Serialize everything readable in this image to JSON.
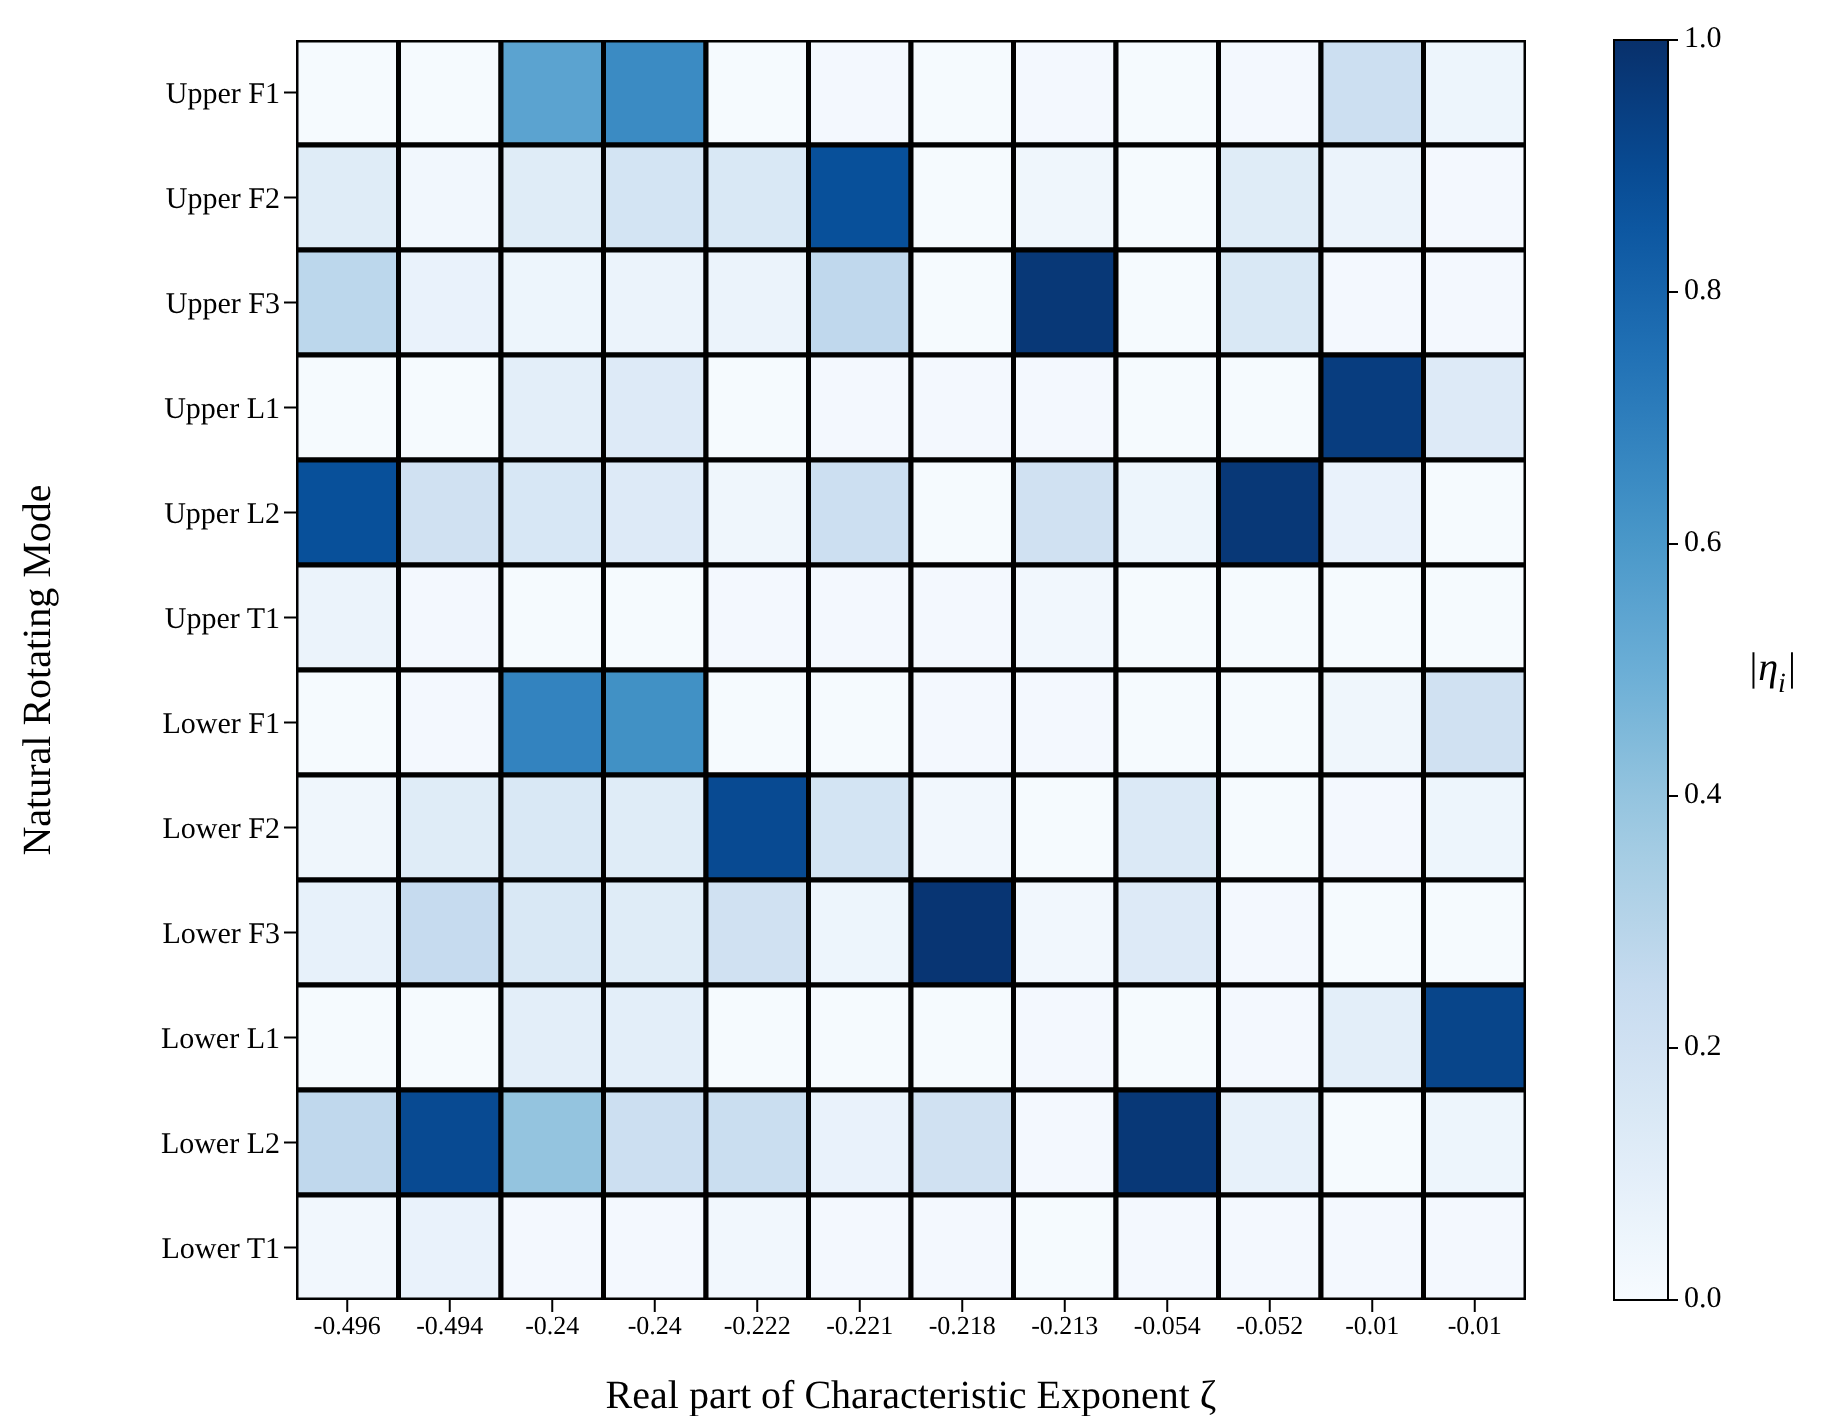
{
  "chart_data": {
    "type": "heatmap",
    "xlabel": "Real part of Characteristic Exponent ζ",
    "ylabel": "Natural Rotating Mode",
    "clabel": "|η$_{i}$|",
    "categories": [
      "-0.496",
      "-0.494",
      "-0.24",
      "-0.24",
      "-0.222",
      "-0.221",
      "-0.218",
      "-0.213",
      "-0.054",
      "-0.052",
      "-0.01",
      "-0.01"
    ],
    "y_categories": [
      "Upper F1",
      "Upper F2",
      "Upper F3",
      "Upper L1",
      "Upper L2",
      "Upper T1",
      "Lower F1",
      "Lower F2",
      "Lower F3",
      "Lower L1",
      "Lower L2",
      "Lower T1"
    ],
    "cells": [
      [
        0.01,
        0.01,
        0.55,
        0.65,
        0.01,
        0.02,
        0.01,
        0.02,
        0.01,
        0.02,
        0.22,
        0.05
      ],
      [
        0.12,
        0.03,
        0.12,
        0.18,
        0.15,
        0.88,
        0.01,
        0.04,
        0.01,
        0.12,
        0.06,
        0.02
      ],
      [
        0.28,
        0.07,
        0.05,
        0.06,
        0.06,
        0.27,
        0.01,
        0.97,
        0.01,
        0.15,
        0.02,
        0.02
      ],
      [
        0.01,
        0.01,
        0.1,
        0.13,
        0.01,
        0.02,
        0.02,
        0.02,
        0.01,
        0.01,
        0.95,
        0.13
      ],
      [
        0.88,
        0.2,
        0.16,
        0.13,
        0.04,
        0.22,
        0.01,
        0.2,
        0.05,
        0.97,
        0.07,
        0.01
      ],
      [
        0.06,
        0.02,
        0.01,
        0.01,
        0.02,
        0.02,
        0.02,
        0.03,
        0.01,
        0.01,
        0.01,
        0.01
      ],
      [
        0.01,
        0.02,
        0.68,
        0.63,
        0.01,
        0.01,
        0.02,
        0.02,
        0.01,
        0.01,
        0.04,
        0.2
      ],
      [
        0.04,
        0.12,
        0.15,
        0.12,
        0.9,
        0.18,
        0.03,
        0.01,
        0.14,
        0.01,
        0.02,
        0.05
      ],
      [
        0.08,
        0.25,
        0.15,
        0.12,
        0.2,
        0.05,
        0.98,
        0.03,
        0.13,
        0.02,
        0.01,
        0.01
      ],
      [
        0.01,
        0.01,
        0.1,
        0.1,
        0.01,
        0.01,
        0.01,
        0.02,
        0.01,
        0.02,
        0.1,
        0.92
      ],
      [
        0.27,
        0.9,
        0.4,
        0.22,
        0.23,
        0.07,
        0.2,
        0.02,
        0.97,
        0.08,
        0.01,
        0.05
      ],
      [
        0.03,
        0.07,
        0.02,
        0.02,
        0.03,
        0.02,
        0.02,
        0.01,
        0.02,
        0.02,
        0.02,
        0.02
      ]
    ],
    "clim": [
      0,
      1
    ],
    "cticks": [
      {
        "value": 0,
        "label": "0.0"
      },
      {
        "value": 0.2,
        "label": "0.2"
      },
      {
        "value": 0.4,
        "label": "0.4"
      },
      {
        "value": 0.6,
        "label": "0.6"
      },
      {
        "value": 0.8,
        "label": "0.8"
      },
      {
        "value": 1,
        "label": "1.0"
      }
    ]
  }
}
